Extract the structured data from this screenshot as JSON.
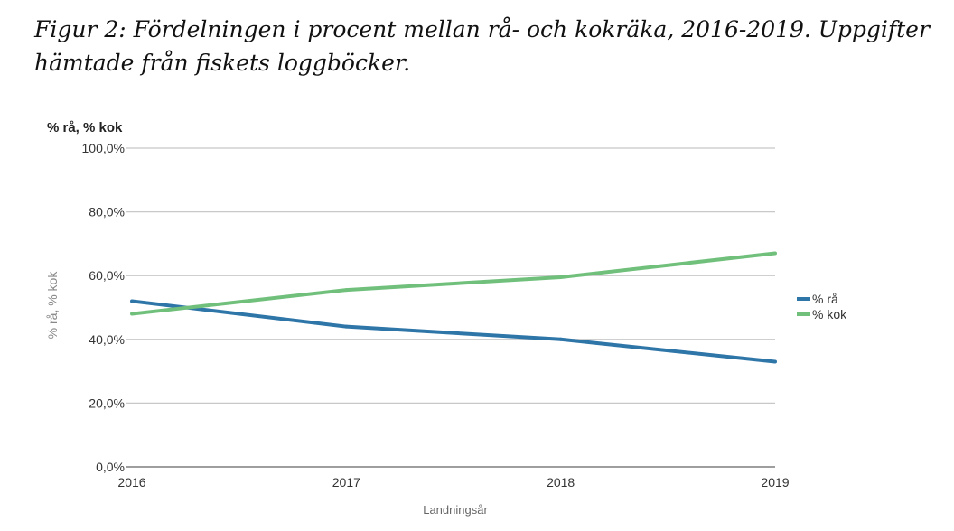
{
  "figure": {
    "caption_line1": "Figur 2: Fördelningen i procent mellan rå- och kokräka, 2016-2019. Uppgifter",
    "caption_line2": "hämtade från fiskets loggböcker."
  },
  "chart_data": {
    "type": "line",
    "title": "% rå, % kok",
    "xlabel": "Landningsår",
    "ylabel": "% rå, % kok",
    "x": [
      "2016",
      "2017",
      "2018",
      "2019"
    ],
    "ylim": [
      0,
      100
    ],
    "yticks": [
      "0,0%",
      "20,0%",
      "40,0%",
      "60,0%",
      "80,0%",
      "100,0%"
    ],
    "ytick_values": [
      0,
      20,
      40,
      60,
      80,
      100
    ],
    "grid": true,
    "legend_position": "right",
    "series": [
      {
        "name": "% rå",
        "color": "#2e75a8",
        "values": [
          52,
          44,
          40,
          33
        ]
      },
      {
        "name": "% kok",
        "color": "#70c07c",
        "values": [
          48,
          55.5,
          59.5,
          67
        ]
      }
    ]
  }
}
